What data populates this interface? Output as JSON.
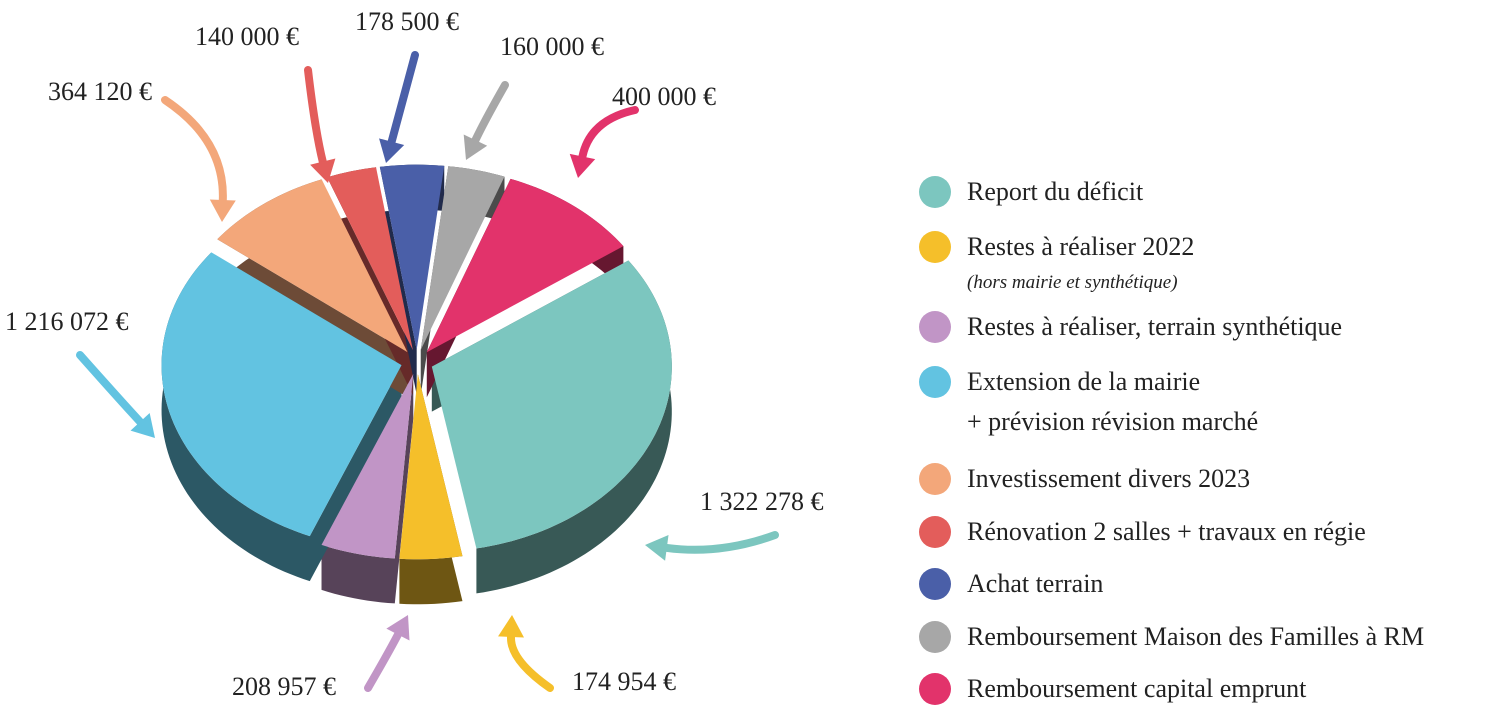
{
  "chart_data": {
    "type": "pie3d",
    "categories": [
      "Report du déficit",
      "Restes à réaliser 2022",
      "Restes à réaliser, terrain synthétique",
      "Extension de la mairie\n+ prévision révision marché",
      "Investissement divers 2023",
      "Rénovation 2 salles + travaux en régie",
      "Achat terrain",
      "Remboursement Maison des Familles à RM",
      "Remboursement capital emprunt"
    ],
    "category_notes": {
      "1": "(hors mairie et synthétique)"
    },
    "values": [
      1322278,
      174954,
      208957,
      1216072,
      364120,
      140000,
      178500,
      160000,
      400000
    ],
    "value_labels": [
      "1 322 278 €",
      "174 954 €",
      "208 957 €",
      "1 216 072 €",
      "364 120 €",
      "140 000 €",
      "178 500 €",
      "160 000 €",
      "400 000 €"
    ],
    "colors": [
      "#7cc6bf",
      "#f5bf2a",
      "#c195c6",
      "#62c3e1",
      "#f3a77a",
      "#e35d5b",
      "#4a5fa8",
      "#a7a7a7",
      "#e2336b"
    ],
    "legend": "right"
  }
}
